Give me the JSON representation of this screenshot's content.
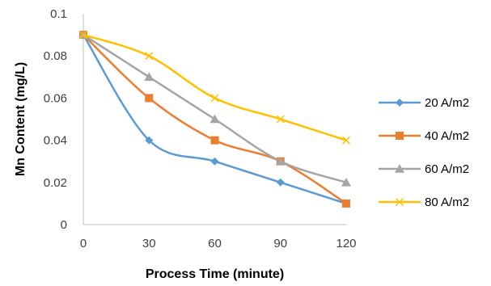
{
  "chart_data": {
    "type": "line",
    "title": "",
    "xlabel": "Process Time (minute)",
    "ylabel": "Mn Content (mg/L)",
    "x": [
      0,
      30,
      60,
      90,
      120
    ],
    "x_tick_labels": [
      "0",
      "30",
      "60",
      "90",
      "120"
    ],
    "xlim": [
      0,
      120
    ],
    "ylim": [
      0,
      0.1
    ],
    "y_tick_labels": [
      "0",
      "0.02",
      "0.04",
      "0.06",
      "0.08",
      "0.1"
    ],
    "grid": false,
    "legend_position": "right",
    "series": [
      {
        "name": "20 A/m2",
        "values": [
          0.09,
          0.04,
          0.03,
          0.02,
          0.01
        ],
        "color": "#5B9BD5",
        "marker": "diamond"
      },
      {
        "name": "40 A/m2",
        "values": [
          0.09,
          0.06,
          0.04,
          0.03,
          0.01
        ],
        "color": "#ED7D31",
        "marker": "square"
      },
      {
        "name": "60 A/m2",
        "values": [
          0.09,
          0.07,
          0.05,
          0.03,
          0.02
        ],
        "color": "#A5A5A5",
        "marker": "triangle"
      },
      {
        "name": "80 A/m2",
        "values": [
          0.09,
          0.08,
          0.06,
          0.05,
          0.04
        ],
        "color": "#FFC000",
        "marker": "x"
      }
    ]
  }
}
